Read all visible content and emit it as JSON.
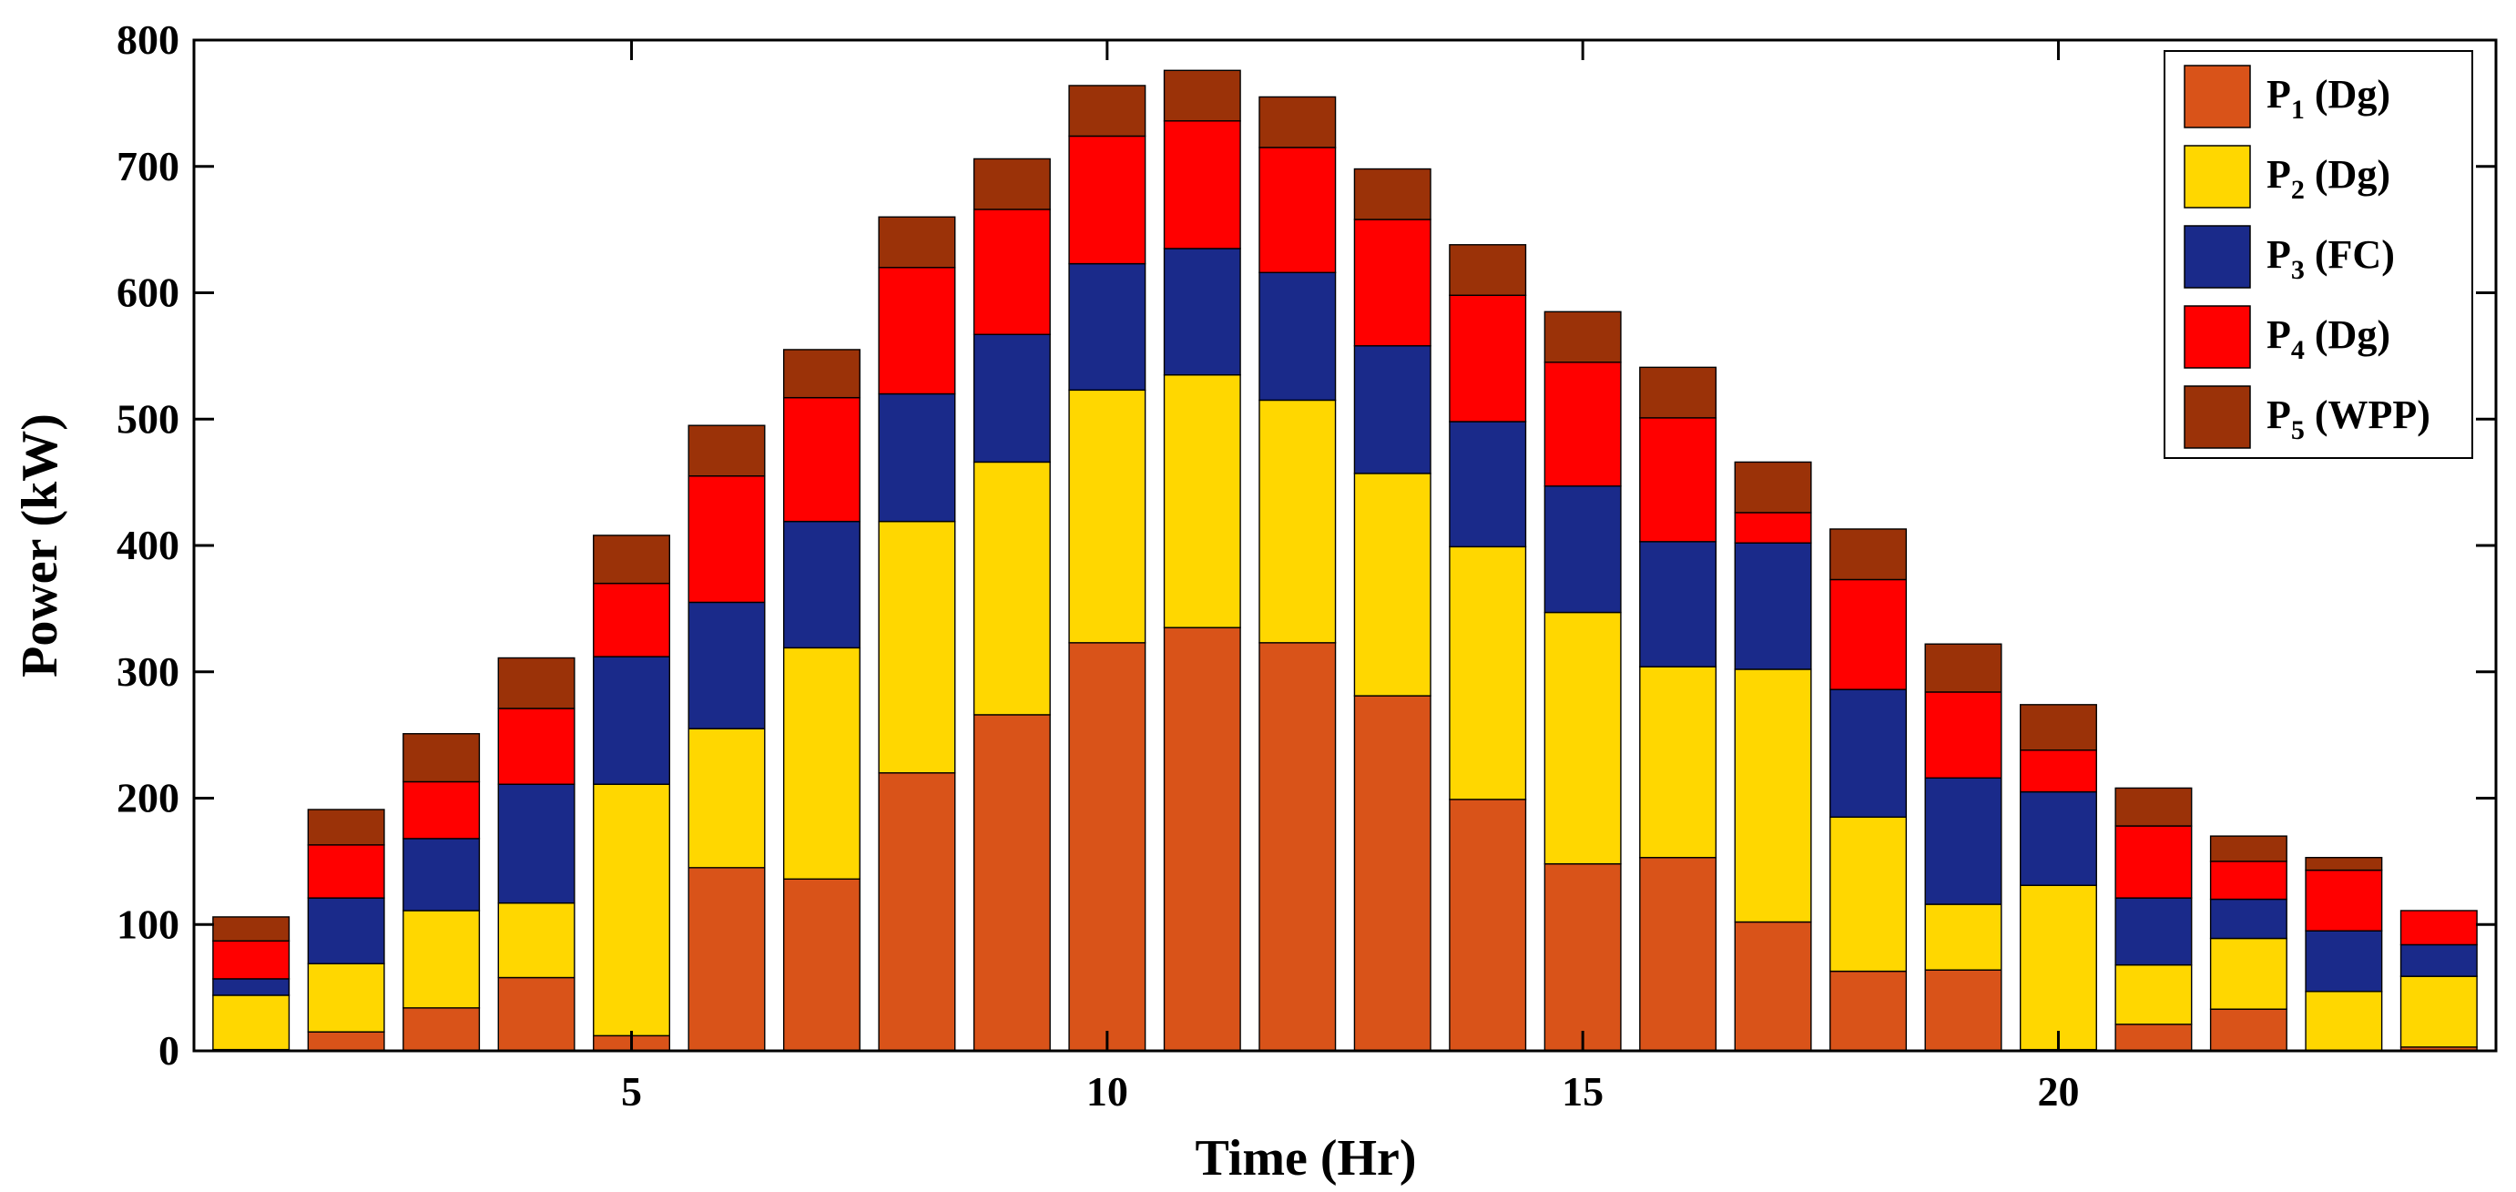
{
  "chart_data": {
    "type": "bar",
    "stacked": true,
    "title": "",
    "xlabel": "Time (Hr)",
    "ylabel": "Power (kW)",
    "xlim": [
      0.4,
      24.6
    ],
    "ylim": [
      0,
      800
    ],
    "xticks": [
      5,
      10,
      15,
      20
    ],
    "yticks": [
      0,
      100,
      200,
      300,
      400,
      500,
      600,
      700,
      800
    ],
    "legend_position": "top-right",
    "categories": [
      1,
      2,
      3,
      4,
      5,
      6,
      7,
      8,
      9,
      10,
      11,
      12,
      13,
      14,
      15,
      16,
      17,
      18,
      19,
      20,
      21,
      22,
      23,
      24
    ],
    "series": [
      {
        "name": "P1 (Dg)",
        "label_main": "P",
        "label_sub": "1",
        "label_rest": " (Dg)",
        "color": "#d95319",
        "values": [
          1,
          15,
          34,
          58,
          12,
          145,
          136,
          220,
          266,
          323,
          335,
          323,
          281,
          199,
          148,
          153,
          102,
          63,
          64,
          1,
          21,
          33,
          0,
          3
        ]
      },
      {
        "name": "P2 (Dg)",
        "label_main": "P",
        "label_sub": "2",
        "label_rest": " (Dg)",
        "color": "#ffd700",
        "values": [
          43,
          54,
          77,
          59,
          199,
          110,
          183,
          199,
          200,
          200,
          200,
          192,
          176,
          200,
          199,
          151,
          200,
          122,
          52,
          130,
          47,
          56,
          47,
          56
        ]
      },
      {
        "name": "P3 (FC)",
        "label_main": "P",
        "label_sub": "3",
        "label_rest": " (FC)",
        "color": "#1a2a8a",
        "values": [
          13,
          52,
          57,
          94,
          101,
          100,
          100,
          101,
          101,
          100,
          100,
          101,
          101,
          99,
          100,
          99,
          100,
          101,
          100,
          74,
          53,
          31,
          48,
          25
        ]
      },
      {
        "name": "P4 (Dg)",
        "label_main": "P",
        "label_sub": "4",
        "label_rest": " (Dg)",
        "color": "#ff0000",
        "values": [
          30,
          42,
          45,
          60,
          58,
          100,
          98,
          100,
          99,
          101,
          101,
          99,
          100,
          100,
          98,
          98,
          24,
          87,
          68,
          33,
          57,
          30,
          48,
          27
        ]
      },
      {
        "name": "P5 (WPP)",
        "label_main": "P",
        "label_sub": "5",
        "label_rest": " (WPP)",
        "color": "#9b3208",
        "values": [
          19,
          28,
          38,
          40,
          38,
          40,
          38,
          40,
          40,
          40,
          40,
          40,
          40,
          40,
          40,
          40,
          40,
          40,
          38,
          36,
          30,
          20,
          10,
          0
        ]
      }
    ]
  }
}
